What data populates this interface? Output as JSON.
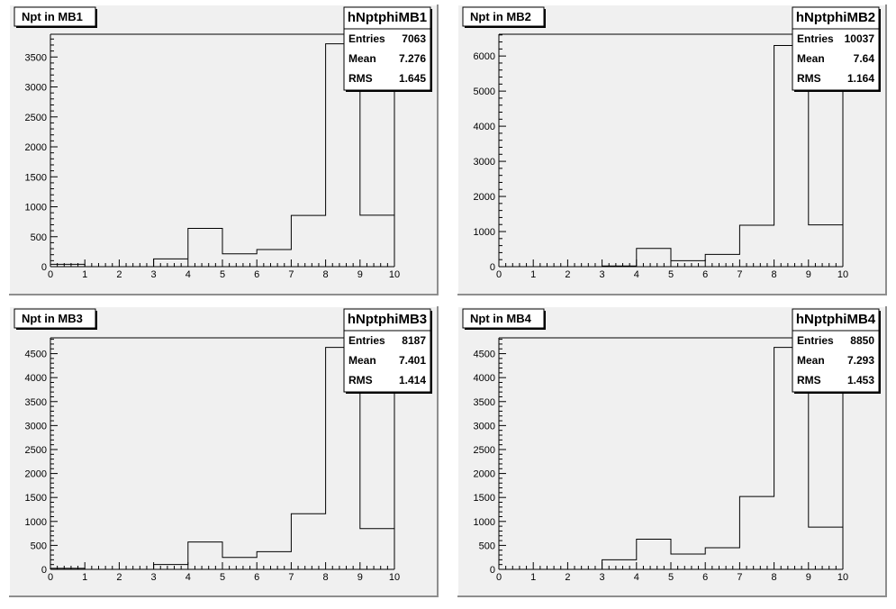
{
  "chart_data": [
    {
      "type": "bar",
      "title": "Npt in MB1",
      "stats": {
        "name": "hNptphiMB1",
        "rows": [
          {
            "label": "Entries",
            "value": "7063"
          },
          {
            "label": "Mean",
            "value": "7.276"
          },
          {
            "label": "RMS",
            "value": "1.645"
          }
        ]
      },
      "bin_edges": [
        0,
        1,
        2,
        3,
        4,
        5,
        6,
        7,
        8,
        9,
        10
      ],
      "values": [
        40,
        0,
        0,
        130,
        640,
        215,
        285,
        855,
        3720,
        860
      ],
      "xlim": [
        0,
        10
      ],
      "ylim": [
        0,
        3880
      ],
      "yticks": [
        0,
        500,
        1000,
        1500,
        2000,
        2500,
        3000,
        3500
      ],
      "xticks": [
        0,
        1,
        2,
        3,
        4,
        5,
        6,
        7,
        8,
        9,
        10
      ],
      "xlabel": "",
      "ylabel": ""
    },
    {
      "type": "bar",
      "title": "Npt in MB2",
      "stats": {
        "name": "hNptphiMB2",
        "rows": [
          {
            "label": "Entries",
            "value": "10037"
          },
          {
            "label": "Mean",
            "value": "7.64"
          },
          {
            "label": "RMS",
            "value": "1.164"
          }
        ]
      },
      "bin_edges": [
        0,
        1,
        2,
        3,
        4,
        5,
        6,
        7,
        8,
        9,
        10
      ],
      "values": [
        0,
        0,
        0,
        20,
        520,
        170,
        350,
        1180,
        6300,
        1190
      ],
      "xlim": [
        0,
        10
      ],
      "ylim": [
        0,
        6620
      ],
      "yticks": [
        0,
        1000,
        2000,
        3000,
        4000,
        5000,
        6000
      ],
      "xticks": [
        0,
        1,
        2,
        3,
        4,
        5,
        6,
        7,
        8,
        9,
        10
      ],
      "xlabel": "",
      "ylabel": ""
    },
    {
      "type": "bar",
      "title": "Npt in MB3",
      "stats": {
        "name": "hNptphiMB3",
        "rows": [
          {
            "label": "Entries",
            "value": "8187"
          },
          {
            "label": "Mean",
            "value": "7.401"
          },
          {
            "label": "RMS",
            "value": "1.414"
          }
        ]
      },
      "bin_edges": [
        0,
        1,
        2,
        3,
        4,
        5,
        6,
        7,
        8,
        9,
        10
      ],
      "values": [
        20,
        0,
        0,
        100,
        570,
        250,
        370,
        1160,
        4630,
        850
      ],
      "xlim": [
        0,
        10
      ],
      "ylim": [
        0,
        4830
      ],
      "yticks": [
        0,
        500,
        1000,
        1500,
        2000,
        2500,
        3000,
        3500,
        4000,
        4500
      ],
      "xticks": [
        0,
        1,
        2,
        3,
        4,
        5,
        6,
        7,
        8,
        9,
        10
      ],
      "xlabel": "",
      "ylabel": ""
    },
    {
      "type": "bar",
      "title": "Npt in MB4",
      "stats": {
        "name": "hNptphiMB4",
        "rows": [
          {
            "label": "Entries",
            "value": "8850"
          },
          {
            "label": "Mean",
            "value": "7.293"
          },
          {
            "label": "RMS",
            "value": "1.453"
          }
        ]
      },
      "bin_edges": [
        0,
        1,
        2,
        3,
        4,
        5,
        6,
        7,
        8,
        9,
        10
      ],
      "values": [
        0,
        0,
        0,
        200,
        630,
        320,
        450,
        1520,
        4630,
        880
      ],
      "xlim": [
        0,
        10
      ],
      "ylim": [
        0,
        4830
      ],
      "yticks": [
        0,
        500,
        1000,
        1500,
        2000,
        2500,
        3000,
        3500,
        4000,
        4500
      ],
      "xticks": [
        0,
        1,
        2,
        3,
        4,
        5,
        6,
        7,
        8,
        9,
        10
      ],
      "xlabel": "",
      "ylabel": ""
    }
  ],
  "colors": {
    "canvas_background": "#ffffff",
    "pad_background": "#f0f0f0",
    "line": "#000000",
    "pad_shadow": "#8e8e8e",
    "pad_highlight": "#ffffff"
  }
}
